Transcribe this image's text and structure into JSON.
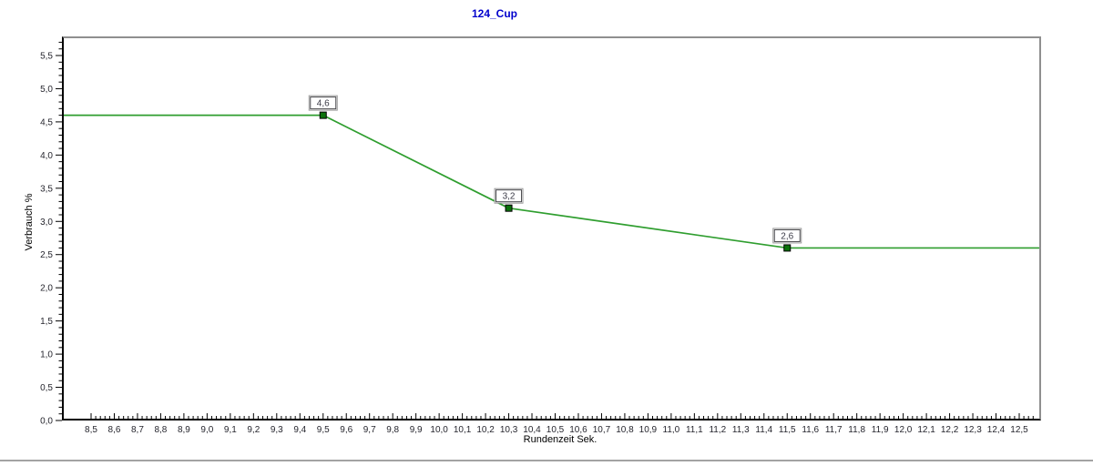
{
  "window": {
    "background_color": "#ffffff",
    "separator_color": "#a3a3a3"
  },
  "frame": {
    "axis_color": "#000000",
    "top_right_frame_color": "#8f8f8f",
    "tick_label_color": "#26262e"
  },
  "title": {
    "text": "124_Cup",
    "color": "#0000cc"
  },
  "chart_data": {
    "type": "line",
    "title": "124_Cup",
    "xlabel": "Rundenzeit Sek.",
    "ylabel": "Verbrauch %",
    "xlim": [
      8.5,
      12.5
    ],
    "ylim": [
      0,
      5.5
    ],
    "x_tick_step": 0.1,
    "y_tick_step": 0.5,
    "x_minor_step": 0.02,
    "y_minor_step": 0.1,
    "grid": false,
    "legend": "none",
    "decimal_separator": ",",
    "x_tick_labels": [
      "8,5",
      "8,6",
      "8,7",
      "8,8",
      "8,9",
      "9,0",
      "9,1",
      "9,2",
      "9,3",
      "9,4",
      "9,5",
      "9,6",
      "9,7",
      "9,8",
      "9,9",
      "10,0",
      "10,1",
      "10,2",
      "10,3",
      "10,4",
      "10,5",
      "10,6",
      "10,7",
      "10,8",
      "10,9",
      "11,0",
      "11,1",
      "11,2",
      "11,3",
      "11,4",
      "11,5",
      "11,6",
      "11,7",
      "11,8",
      "11,9",
      "12,0",
      "12,1",
      "12,2",
      "12,3",
      "12,4",
      "12,5"
    ],
    "y_tick_labels": [
      "0,0",
      "0,5",
      "1,0",
      "1,5",
      "2,0",
      "2,5",
      "3,0",
      "3,5",
      "4,0",
      "4,5",
      "5,0",
      "5,5"
    ],
    "series": [
      {
        "name": "124_Cup",
        "line_color": "#2f9e2f",
        "marker_color": "#0b720b",
        "marker_border_color": "#000000",
        "marker_shape": "square",
        "x": [
          9.5,
          10.3,
          11.5
        ],
        "y": [
          4.6,
          3.2,
          2.6
        ],
        "point_labels": [
          "4,6",
          "3,2",
          "2,6"
        ],
        "extends_flat_to_plot_edges": true
      }
    ],
    "point_label_box": {
      "fill": "#ffffff",
      "outer_border_color": "#9a9a9a",
      "inner_border_color": "#46464a",
      "text_color": "#3a3a46"
    }
  }
}
